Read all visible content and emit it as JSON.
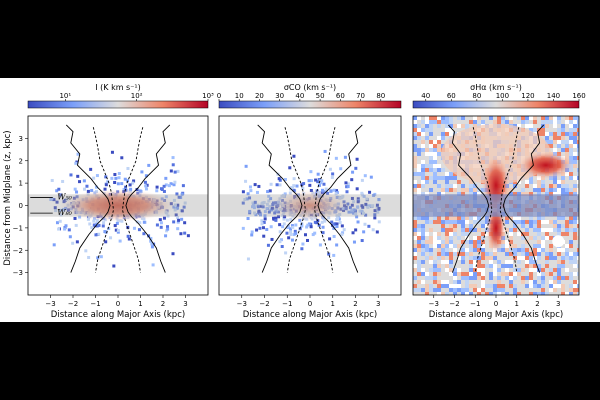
{
  "figure": {
    "ylabel": "Distance from Midplane (z, kpc)",
    "xlabel": "Distance along Major Axis (kpc)"
  },
  "chart_data": [
    {
      "type": "heatmap",
      "panel": "intensity",
      "colorbar": {
        "label": "I (K km s⁻¹)",
        "scale": "log",
        "range": [
          3,
          1000
        ],
        "ticks": [
          {
            "value": 10,
            "label": "10¹"
          },
          {
            "value": 100,
            "label": "10²"
          },
          {
            "value": 1000,
            "label": "10³"
          }
        ],
        "colormap": [
          "#3b4cc0",
          "#7b9ff9",
          "#c0d4f5",
          "#f2cbb7",
          "#ee8468",
          "#b40426"
        ]
      },
      "xlim": [
        -4,
        4
      ],
      "ylim": [
        -4,
        4
      ],
      "x_ticks": [
        -3,
        -2,
        -1,
        0,
        1,
        2,
        3
      ],
      "y_ticks": [
        -3,
        -2,
        -1,
        0,
        1,
        2,
        3
      ],
      "x_tick_labels": [
        "−3",
        "−2",
        "−1",
        "0",
        "1",
        "2",
        "3"
      ],
      "y_tick_labels": [
        "−3",
        "−2",
        "−1",
        "0",
        "1",
        "2",
        "3"
      ],
      "shaded_band_z": [
        -0.5,
        0.5
      ],
      "annotations": [
        {
          "text": "W₅₀",
          "x": -3.6,
          "y": 0.45
        },
        {
          "text": "W₈₀",
          "x": -3.6,
          "y": -0.25
        }
      ],
      "w_lines": [
        {
          "name": "W50",
          "points": [
            [
              -2.3,
              3.6
            ],
            [
              -2.0,
              3.3
            ],
            [
              -2.1,
              2.8
            ],
            [
              -1.7,
              2.3
            ],
            [
              -1.8,
              1.8
            ],
            [
              -1.2,
              1.2
            ],
            [
              -0.9,
              0.8
            ],
            [
              -0.6,
              0.5
            ],
            [
              -0.45,
              0.3
            ],
            [
              -0.35,
              0.0
            ],
            [
              -0.45,
              -0.3
            ],
            [
              -0.6,
              -0.5
            ],
            [
              -0.9,
              -0.8
            ],
            [
              -1.3,
              -1.3
            ],
            [
              -1.7,
              -1.9
            ],
            [
              -1.9,
              -2.5
            ],
            [
              -2.1,
              -3.0
            ]
          ]
        },
        {
          "name": "W50",
          "points": [
            [
              2.3,
              3.6
            ],
            [
              2.0,
              3.3
            ],
            [
              2.1,
              2.8
            ],
            [
              1.7,
              2.3
            ],
            [
              1.8,
              1.8
            ],
            [
              1.2,
              1.2
            ],
            [
              0.9,
              0.8
            ],
            [
              0.6,
              0.5
            ],
            [
              0.45,
              0.3
            ],
            [
              0.35,
              0.0
            ],
            [
              0.45,
              -0.3
            ],
            [
              0.6,
              -0.5
            ],
            [
              0.9,
              -0.8
            ],
            [
              1.3,
              -1.3
            ],
            [
              1.7,
              -1.9
            ],
            [
              1.9,
              -2.5
            ],
            [
              2.1,
              -3.0
            ]
          ]
        }
      ],
      "w80_lines": [
        {
          "name": "W80",
          "points": [
            [
              -1.1,
              3.5
            ],
            [
              -1.0,
              3.1
            ],
            [
              -0.9,
              2.6
            ],
            [
              -0.8,
              2.0
            ],
            [
              -0.6,
              1.5
            ],
            [
              -0.4,
              1.0
            ],
            [
              -0.3,
              0.6
            ],
            [
              -0.25,
              0.2
            ],
            [
              -0.2,
              -0.2
            ],
            [
              -0.3,
              -0.6
            ],
            [
              -0.5,
              -1.2
            ],
            [
              -0.7,
              -1.8
            ],
            [
              -0.9,
              -2.4
            ],
            [
              -1.0,
              -3.0
            ]
          ]
        },
        {
          "name": "W80",
          "points": [
            [
              1.1,
              3.5
            ],
            [
              1.0,
              3.1
            ],
            [
              0.9,
              2.6
            ],
            [
              0.8,
              2.0
            ],
            [
              0.6,
              1.5
            ],
            [
              0.4,
              1.0
            ],
            [
              0.3,
              0.6
            ],
            [
              0.25,
              0.2
            ],
            [
              0.2,
              -0.2
            ],
            [
              0.3,
              -0.6
            ],
            [
              0.5,
              -1.2
            ],
            [
              0.7,
              -1.8
            ],
            [
              0.9,
              -2.4
            ],
            [
              1.0,
              -3.0
            ]
          ]
        }
      ]
    },
    {
      "type": "heatmap",
      "panel": "sigma_co",
      "colorbar": {
        "label": "σCO (km s⁻¹)",
        "scale": "linear",
        "range": [
          0,
          90
        ],
        "ticks": [
          {
            "value": 0,
            "label": "0"
          },
          {
            "value": 10,
            "label": "10"
          },
          {
            "value": 20,
            "label": "20"
          },
          {
            "value": 30,
            "label": "30"
          },
          {
            "value": 40,
            "label": "40"
          },
          {
            "value": 50,
            "label": "50"
          },
          {
            "value": 60,
            "label": "60"
          },
          {
            "value": 70,
            "label": "70"
          },
          {
            "value": 80,
            "label": "80"
          }
        ],
        "colormap": [
          "#3b4cc0",
          "#7b9ff9",
          "#c0d4f5",
          "#f2cbb7",
          "#ee8468",
          "#b40426"
        ]
      },
      "xlim": [
        -4,
        4
      ],
      "ylim": [
        -4,
        4
      ],
      "x_ticks": [
        -3,
        -2,
        -1,
        0,
        1,
        2,
        3
      ],
      "x_tick_labels": [
        "−3",
        "−2",
        "−1",
        "0",
        "1",
        "2",
        "3"
      ],
      "shaded_band_z": [
        -0.5,
        0.5
      ]
    },
    {
      "type": "heatmap",
      "panel": "sigma_ha",
      "colorbar": {
        "label": "σHα (km s⁻¹)",
        "scale": "linear",
        "range": [
          30,
          160
        ],
        "ticks": [
          {
            "value": 40,
            "label": "40"
          },
          {
            "value": 60,
            "label": "60"
          },
          {
            "value": 80,
            "label": "80"
          },
          {
            "value": 100,
            "label": "100"
          },
          {
            "value": 120,
            "label": "120"
          },
          {
            "value": 140,
            "label": "140"
          },
          {
            "value": 160,
            "label": "160"
          }
        ],
        "colormap": [
          "#3b4cc0",
          "#7b9ff9",
          "#c0d4f5",
          "#f2cbb7",
          "#ee8468",
          "#b40426"
        ]
      },
      "xlim": [
        -4,
        4
      ],
      "ylim": [
        -4,
        4
      ],
      "x_ticks": [
        -3,
        -2,
        -1,
        0,
        1,
        2,
        3
      ],
      "x_tick_labels": [
        "−3",
        "−2",
        "−1",
        "0",
        "1",
        "2",
        "3"
      ],
      "shaded_band_z": [
        -0.5,
        0.5
      ]
    }
  ]
}
